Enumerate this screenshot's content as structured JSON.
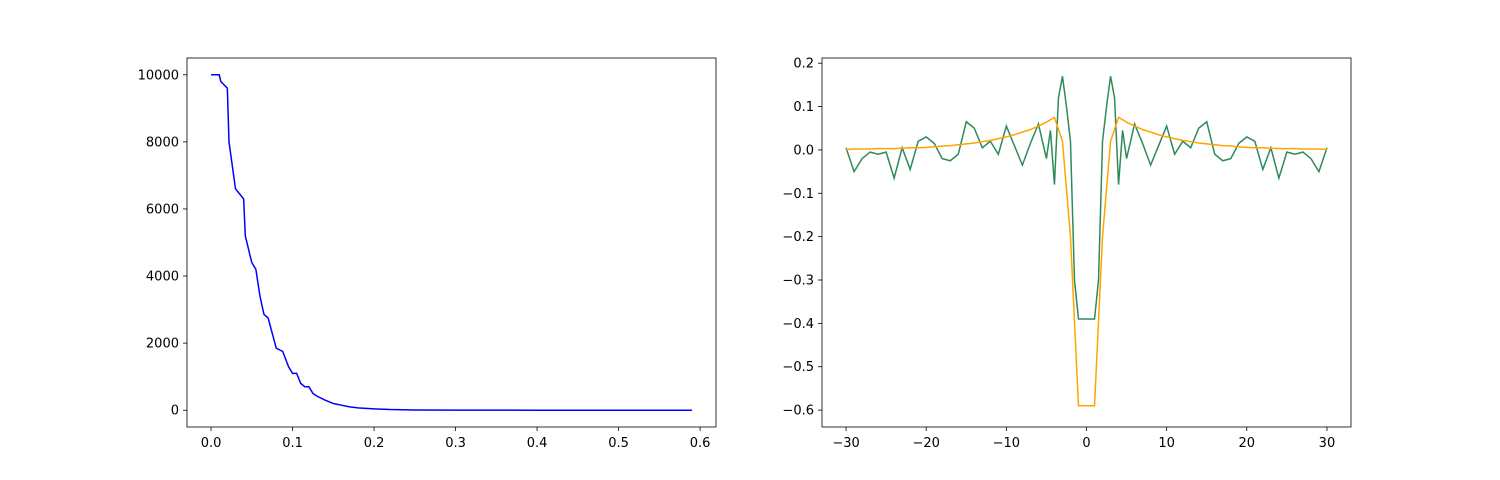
{
  "chart_data": [
    {
      "type": "line",
      "xlim": [
        -0.0295,
        0.6195
      ],
      "xticks": [
        {
          "value": 0,
          "label": "0.0"
        },
        0.1,
        0.2,
        0.3,
        0.4,
        0.5,
        0.6
      ],
      "ylim": [
        -500,
        10500
      ],
      "yticks": [
        0,
        2000,
        4000,
        6000,
        8000,
        10000
      ],
      "series": [
        {
          "color": "#0000ff",
          "x": [
            0,
            0.01,
            0.012,
            0.02,
            0.022,
            0.03,
            0.035,
            0.04,
            0.042,
            0.05,
            0.055,
            0.06,
            0.065,
            0.07,
            0.075,
            0.08,
            0.088,
            0.095,
            0.1,
            0.105,
            0.11,
            0.115,
            0.12,
            0.125,
            0.13,
            0.14,
            0.145,
            0.15,
            0.16,
            0.17,
            0.18,
            0.2,
            0.22,
            0.25,
            0.3,
            0.4,
            0.5,
            0.59
          ],
          "values": [
            10000,
            10000,
            9800,
            9600,
            8000,
            6600,
            6450,
            6300,
            5200,
            4400,
            4200,
            3400,
            2850,
            2750,
            2300,
            1850,
            1750,
            1300,
            1100,
            1100,
            800,
            700,
            700,
            500,
            420,
            300,
            250,
            200,
            150,
            100,
            70,
            40,
            20,
            8,
            3,
            1,
            0,
            0
          ]
        }
      ]
    },
    {
      "type": "line",
      "xlim": [
        -33,
        33
      ],
      "xticks": [
        {
          "value": -30,
          "label": "−30"
        },
        {
          "value": -20,
          "label": "−20"
        },
        {
          "value": -10,
          "label": "−10"
        },
        0,
        10,
        20,
        30
      ],
      "ylim": [
        -0.639,
        0.212
      ],
      "yticks": [
        {
          "value": -0.6,
          "label": "−0.6"
        },
        {
          "value": -0.5,
          "label": "−0.5"
        },
        {
          "value": -0.4,
          "label": "−0.4"
        },
        {
          "value": -0.3,
          "label": "−0.3"
        },
        {
          "value": -0.2,
          "label": "−0.2"
        },
        {
          "value": -0.1,
          "label": "−0.1"
        },
        {
          "value": 0,
          "label": "0.0"
        },
        0.1,
        0.2
      ],
      "series": [
        {
          "color": "#2e8b57",
          "x": [
            -30,
            -29,
            -28,
            -27,
            -26,
            -25,
            -24,
            -23,
            -22,
            -21,
            -20,
            -19,
            -18,
            -17,
            -16,
            -15,
            -14,
            -13,
            -12,
            -11,
            -10,
            -9,
            -8,
            -7,
            -6,
            -5,
            -4.5,
            -4,
            -3.5,
            -3,
            -2.5,
            -2,
            -1.5,
            -1,
            -0.5,
            0,
            0.5,
            1,
            1.5,
            2,
            2.5,
            3,
            3.5,
            4,
            4.5,
            5,
            6,
            7,
            8,
            9,
            10,
            11,
            12,
            13,
            14,
            15,
            16,
            17,
            18,
            19,
            20,
            21,
            22,
            23,
            24,
            25,
            26,
            27,
            28,
            29,
            30
          ],
          "values": [
            0.005,
            -0.05,
            -0.02,
            -0.005,
            -0.01,
            -0.005,
            -0.065,
            0.005,
            -0.045,
            0.02,
            0.03,
            0.015,
            -0.02,
            -0.025,
            -0.01,
            0.065,
            0.05,
            0.005,
            0.02,
            -0.01,
            0.055,
            0.01,
            -0.035,
            0.015,
            0.06,
            -0.02,
            0.045,
            -0.08,
            0.12,
            0.17,
            0.1,
            0.02,
            -0.3,
            -0.39,
            -0.39,
            -0.39,
            -0.39,
            -0.39,
            -0.3,
            0.02,
            0.1,
            0.17,
            0.12,
            -0.08,
            0.045,
            -0.02,
            0.06,
            0.015,
            -0.035,
            0.01,
            0.055,
            -0.01,
            0.02,
            0.005,
            0.05,
            0.065,
            -0.01,
            -0.025,
            -0.02,
            0.015,
            0.03,
            0.02,
            -0.045,
            0.005,
            -0.065,
            -0.005,
            -0.01,
            -0.005,
            -0.02,
            -0.05,
            0.005
          ]
        },
        {
          "color": "#ffa500",
          "x": [
            -30,
            -29,
            -28,
            -27,
            -26,
            -25,
            -24,
            -23,
            -22,
            -21,
            -20,
            -19,
            -18,
            -17,
            -16,
            -15,
            -14,
            -13,
            -12,
            -11,
            -10,
            -9,
            -8,
            -7,
            -6,
            -5,
            -4,
            -3,
            -2,
            -1,
            0,
            1,
            2,
            3,
            4,
            5,
            6,
            7,
            8,
            9,
            10,
            11,
            12,
            13,
            14,
            15,
            16,
            17,
            18,
            19,
            20,
            21,
            22,
            23,
            24,
            25,
            26,
            27,
            28,
            29,
            30
          ],
          "values": [
            0.001,
            0.002,
            0.002,
            0.002,
            0.003,
            0.003,
            0.003,
            0.004,
            0.005,
            0.005,
            0.006,
            0.007,
            0.009,
            0.01,
            0.012,
            0.014,
            0.016,
            0.019,
            0.022,
            0.026,
            0.03,
            0.035,
            0.041,
            0.047,
            0.055,
            0.064,
            0.075,
            0.02,
            -0.2,
            -0.59,
            -0.59,
            -0.59,
            -0.2,
            0.02,
            0.075,
            0.064,
            0.055,
            0.047,
            0.041,
            0.035,
            0.03,
            0.026,
            0.022,
            0.019,
            0.016,
            0.014,
            0.012,
            0.01,
            0.009,
            0.007,
            0.006,
            0.005,
            0.005,
            0.004,
            0.003,
            0.003,
            0.003,
            0.002,
            0.002,
            0.002,
            0.001
          ]
        }
      ]
    }
  ]
}
